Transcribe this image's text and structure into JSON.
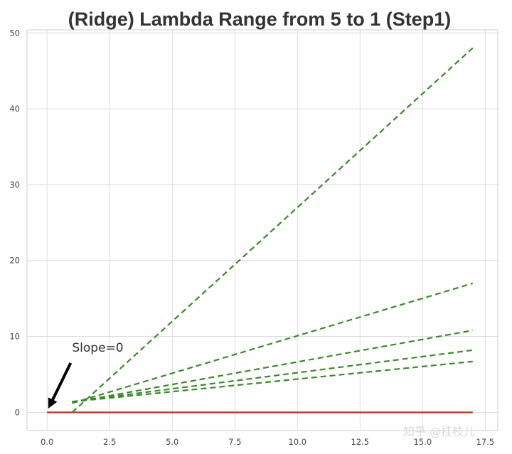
{
  "chart_data": {
    "type": "line",
    "title": "(Ridge) Lambda Range from 5 to 1 (Step1)",
    "xlabel": "",
    "ylabel": "",
    "xlim": [
      -0.8,
      18.0
    ],
    "ylim": [
      -2.4,
      50.4
    ],
    "xticks": [
      0.0,
      2.5,
      5.0,
      7.5,
      10.0,
      12.5,
      15.0,
      17.5
    ],
    "xtick_labels": [
      "0.0",
      "2.5",
      "5.0",
      "7.5",
      "10.0",
      "12.5",
      "15.0",
      "17.5"
    ],
    "yticks": [
      0,
      10,
      20,
      30,
      40,
      50
    ],
    "ytick_labels": [
      "0",
      "10",
      "20",
      "30",
      "40",
      "50"
    ],
    "grid": true,
    "series": [
      {
        "style": "solid",
        "color": "#c0392b",
        "x": [
          0,
          17
        ],
        "y": [
          0,
          0
        ]
      },
      {
        "style": "dashed",
        "color": "#3a8a2a",
        "x": [
          1,
          17
        ],
        "y": [
          0.0,
          48.0
        ]
      },
      {
        "style": "dashed",
        "color": "#3a8a2a",
        "x": [
          1,
          17
        ],
        "y": [
          1.2,
          17.0
        ]
      },
      {
        "style": "dashed",
        "color": "#3a8a2a",
        "x": [
          1,
          17
        ],
        "y": [
          1.3,
          10.8
        ]
      },
      {
        "style": "dashed",
        "color": "#3a8a2a",
        "x": [
          1,
          17
        ],
        "y": [
          1.4,
          8.2
        ]
      },
      {
        "style": "dashed",
        "color": "#3a8a2a",
        "x": [
          1,
          17
        ],
        "y": [
          1.4,
          6.7
        ]
      }
    ],
    "annotations": [
      {
        "text": "Slope=0",
        "text_x": 1.0,
        "text_y": 8.0,
        "arrow_to_x": 0.05,
        "arrow_to_y": 0.5
      }
    ]
  },
  "watermark": "知乎 @挂枝儿",
  "colors": {
    "background": "#ffffff",
    "grid": "#dddddd",
    "frame": "#cccccc",
    "ridge_line": "#3a8a2a",
    "zero_line": "#c0392b"
  }
}
